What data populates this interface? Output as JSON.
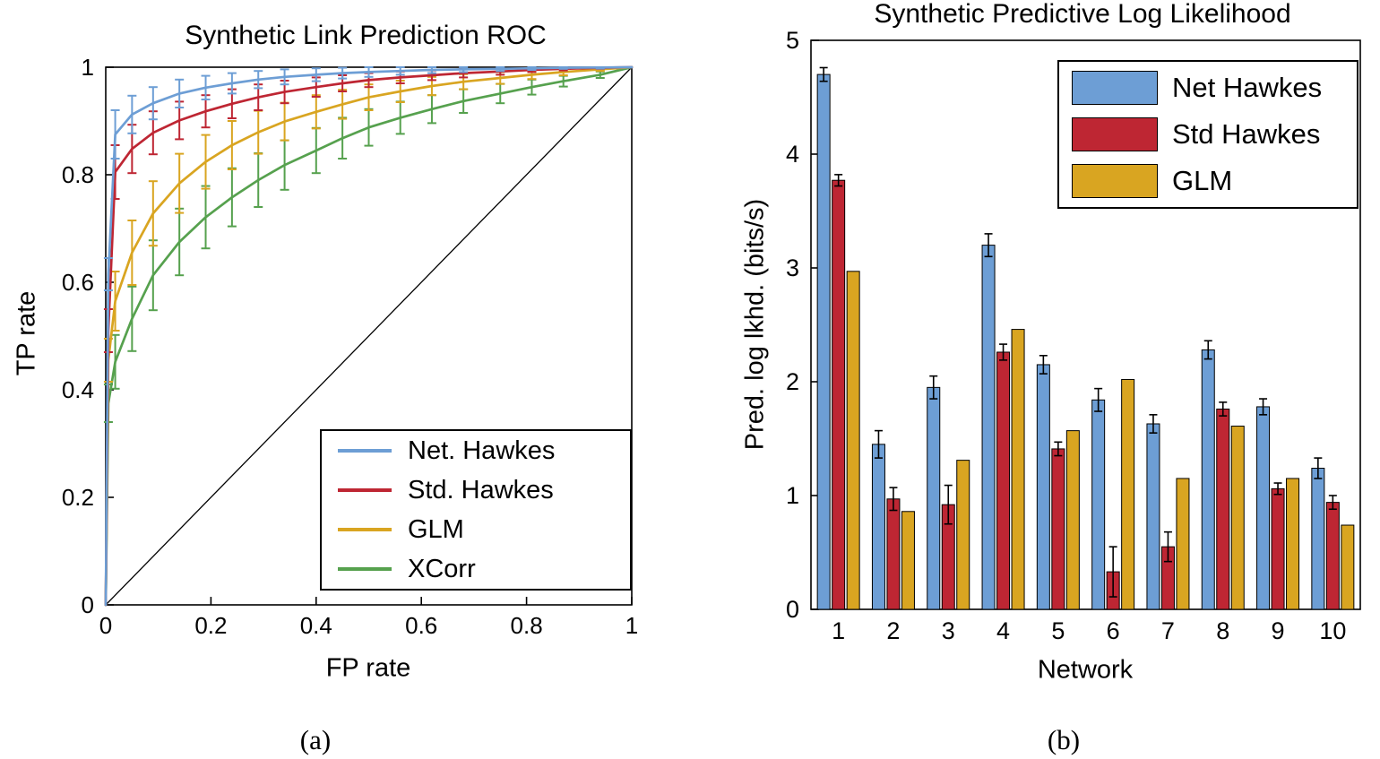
{
  "captions": {
    "a": "(a)",
    "b": "(b)"
  },
  "chart_data": [
    {
      "id": "roc",
      "type": "line",
      "title": "Synthetic Link Prediction ROC",
      "xlabel": "FP rate",
      "ylabel": "TP rate",
      "xlim": [
        0,
        1
      ],
      "ylim": [
        0,
        1
      ],
      "xticks": [
        "0",
        "0.2",
        "0.4",
        "0.6",
        "0.8",
        "1"
      ],
      "yticks": [
        "0",
        "0.2",
        "0.4",
        "0.6",
        "0.8",
        "1"
      ],
      "grid": false,
      "legend_position": "lower-right",
      "diagonal_reference_line": true,
      "axis_color": "#000000",
      "series": [
        {
          "name": "Net. Hawkes",
          "color": "#6D9ED5",
          "points": [
            [
              0,
              0,
              0
            ],
            [
              0.005,
              0.615,
              0.03
            ],
            [
              0.018,
              0.875,
              0.045
            ],
            [
              0.05,
              0.912,
              0.035
            ],
            [
              0.09,
              0.933,
              0.03
            ],
            [
              0.14,
              0.951,
              0.026
            ],
            [
              0.19,
              0.962,
              0.022
            ],
            [
              0.24,
              0.97,
              0.019
            ],
            [
              0.29,
              0.977,
              0.016
            ],
            [
              0.34,
              0.982,
              0.014
            ],
            [
              0.4,
              0.986,
              0.012
            ],
            [
              0.45,
              0.989,
              0.01
            ],
            [
              0.5,
              0.991,
              0.009
            ],
            [
              0.56,
              0.993,
              0.007
            ],
            [
              0.62,
              0.995,
              0.006
            ],
            [
              0.68,
              0.996,
              0.005
            ],
            [
              0.75,
              0.997,
              0.004
            ],
            [
              0.81,
              0.998,
              0.003
            ],
            [
              0.87,
              0.999,
              0.002
            ],
            [
              0.94,
              0.9995,
              0.002
            ],
            [
              1,
              1,
              0
            ]
          ]
        },
        {
          "name": "Std. Hawkes",
          "color": "#BE2633",
          "points": [
            [
              0,
              0,
              0
            ],
            [
              0.005,
              0.51,
              0.04
            ],
            [
              0.018,
              0.805,
              0.05
            ],
            [
              0.05,
              0.848,
              0.045
            ],
            [
              0.09,
              0.878,
              0.04
            ],
            [
              0.14,
              0.901,
              0.035
            ],
            [
              0.19,
              0.918,
              0.03
            ],
            [
              0.24,
              0.932,
              0.027
            ],
            [
              0.29,
              0.944,
              0.024
            ],
            [
              0.34,
              0.954,
              0.021
            ],
            [
              0.4,
              0.963,
              0.018
            ],
            [
              0.45,
              0.97,
              0.015
            ],
            [
              0.5,
              0.976,
              0.013
            ],
            [
              0.56,
              0.981,
              0.011
            ],
            [
              0.62,
              0.985,
              0.009
            ],
            [
              0.68,
              0.989,
              0.008
            ],
            [
              0.75,
              0.992,
              0.006
            ],
            [
              0.81,
              0.995,
              0.004
            ],
            [
              0.87,
              0.997,
              0.003
            ],
            [
              0.94,
              0.999,
              0.002
            ],
            [
              1,
              1,
              0
            ]
          ]
        },
        {
          "name": "GLM",
          "color": "#D9A521",
          "points": [
            [
              0,
              0,
              0
            ],
            [
              0.005,
              0.455,
              0.04
            ],
            [
              0.018,
              0.565,
              0.055
            ],
            [
              0.05,
              0.655,
              0.06
            ],
            [
              0.09,
              0.728,
              0.06
            ],
            [
              0.14,
              0.784,
              0.055
            ],
            [
              0.19,
              0.824,
              0.05
            ],
            [
              0.24,
              0.855,
              0.045
            ],
            [
              0.29,
              0.879,
              0.04
            ],
            [
              0.34,
              0.899,
              0.035
            ],
            [
              0.4,
              0.917,
              0.031
            ],
            [
              0.45,
              0.931,
              0.027
            ],
            [
              0.5,
              0.944,
              0.024
            ],
            [
              0.56,
              0.955,
              0.02
            ],
            [
              0.62,
              0.965,
              0.017
            ],
            [
              0.68,
              0.973,
              0.014
            ],
            [
              0.75,
              0.98,
              0.011
            ],
            [
              0.81,
              0.986,
              0.008
            ],
            [
              0.87,
              0.991,
              0.006
            ],
            [
              0.94,
              0.996,
              0.003
            ],
            [
              1,
              1,
              0
            ]
          ]
        },
        {
          "name": "XCorr",
          "color": "#56A14E",
          "points": [
            [
              0,
              0,
              0
            ],
            [
              0.005,
              0.375,
              0.035
            ],
            [
              0.018,
              0.452,
              0.05
            ],
            [
              0.05,
              0.532,
              0.06
            ],
            [
              0.09,
              0.613,
              0.065
            ],
            [
              0.14,
              0.675,
              0.062
            ],
            [
              0.19,
              0.721,
              0.058
            ],
            [
              0.24,
              0.758,
              0.054
            ],
            [
              0.29,
              0.79,
              0.05
            ],
            [
              0.34,
              0.818,
              0.046
            ],
            [
              0.4,
              0.845,
              0.042
            ],
            [
              0.45,
              0.868,
              0.038
            ],
            [
              0.5,
              0.888,
              0.034
            ],
            [
              0.56,
              0.906,
              0.03
            ],
            [
              0.62,
              0.922,
              0.026
            ],
            [
              0.68,
              0.937,
              0.022
            ],
            [
              0.75,
              0.951,
              0.018
            ],
            [
              0.81,
              0.963,
              0.014
            ],
            [
              0.87,
              0.974,
              0.01
            ],
            [
              0.94,
              0.986,
              0.006
            ],
            [
              1,
              1,
              0
            ]
          ]
        }
      ]
    },
    {
      "id": "pred-log-likelihood",
      "type": "bar",
      "title": "Synthetic Predictive Log Likelihood",
      "xlabel": "Network",
      "ylabel": "Pred. log lkhd. (bits/s)",
      "ylim": [
        0,
        5
      ],
      "yticks": [
        "0",
        "1",
        "2",
        "3",
        "4",
        "5"
      ],
      "grid": false,
      "legend_position": "upper-right",
      "axis_color": "#000000",
      "categories": [
        "1",
        "2",
        "3",
        "4",
        "5",
        "6",
        "7",
        "8",
        "9",
        "10"
      ],
      "series": [
        {
          "name": "Net Hawkes",
          "color": "#6D9ED5",
          "values": [
            4.7,
            1.45,
            1.95,
            3.2,
            2.15,
            1.84,
            1.63,
            2.28,
            1.78,
            1.24
          ],
          "errors": [
            0.06,
            0.12,
            0.1,
            0.1,
            0.08,
            0.1,
            0.08,
            0.08,
            0.07,
            0.09
          ]
        },
        {
          "name": "Std Hawkes",
          "color": "#BE2633",
          "values": [
            3.77,
            0.97,
            0.92,
            2.26,
            1.41,
            0.33,
            0.55,
            1.76,
            1.06,
            0.94
          ],
          "errors": [
            0.05,
            0.1,
            0.17,
            0.07,
            0.06,
            0.22,
            0.13,
            0.06,
            0.05,
            0.06
          ]
        },
        {
          "name": "GLM",
          "color": "#D9A521",
          "values": [
            2.97,
            0.86,
            1.31,
            2.46,
            1.57,
            2.02,
            1.15,
            1.61,
            1.15,
            0.74
          ],
          "errors": null
        }
      ]
    }
  ]
}
